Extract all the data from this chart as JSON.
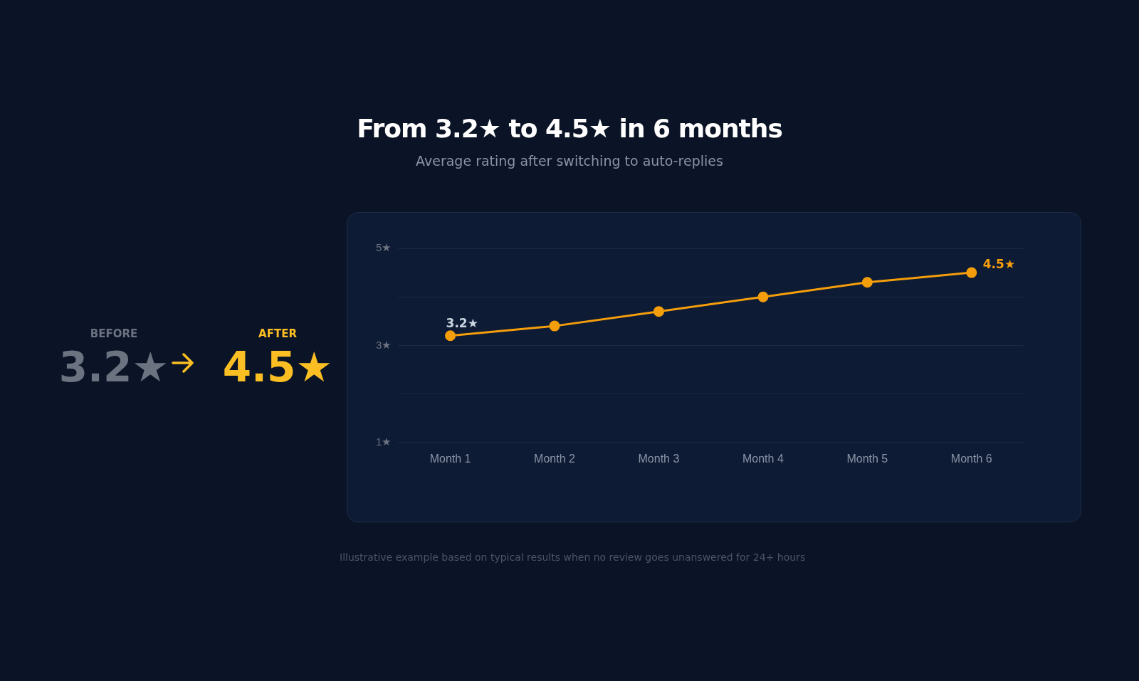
{
  "chart_data": [
    {
      "type": "other",
      "annotations": [
        "BEFORE",
        "3.2★",
        "AFTER",
        "4.5★"
      ]
    },
    {
      "type": "line",
      "title": "From 3.2★ to 4.5★ in 6 months",
      "subtitle": "Average rating after switching to auto-replies",
      "categories": [
        "Month 1",
        "Month 2",
        "Month 3",
        "Month 4",
        "Month 5",
        "Month 6"
      ],
      "series": [
        {
          "color": "#f59e0b",
          "values": [
            3.2,
            3.4,
            3.7,
            4.0,
            4.3,
            4.5
          ],
          "value_labels": [
            "3.2★",
            null,
            null,
            null,
            null,
            "4.5★"
          ]
        }
      ],
      "ylim": [
        1,
        5
      ],
      "yticks": [
        {
          "value": 1,
          "label": "1★"
        },
        {
          "value": 2,
          "label": null
        },
        {
          "value": 3,
          "label": "3★"
        },
        {
          "value": 4,
          "label": null
        },
        {
          "value": 5,
          "label": "5★"
        }
      ],
      "grid": "y",
      "marker": "circle",
      "line_style": "solid",
      "legend": false,
      "annotations": [
        "Illustrative example based on typical results when no review goes unanswered for 24+ hours"
      ]
    }
  ]
}
